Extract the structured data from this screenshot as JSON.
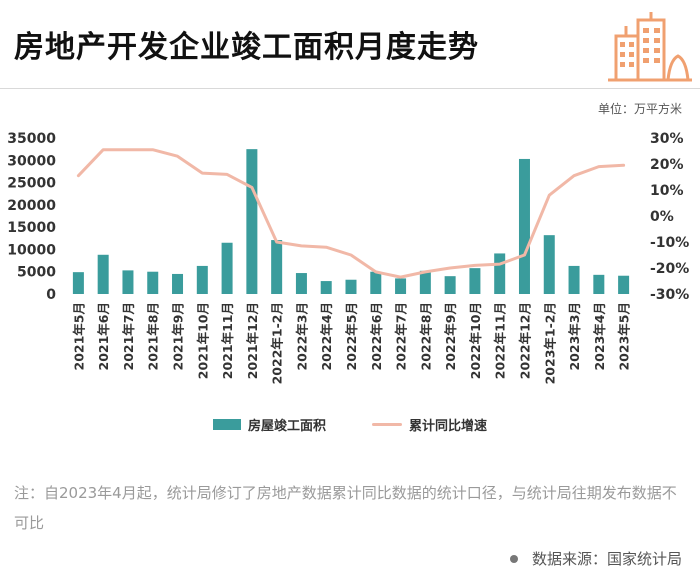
{
  "page": {
    "title": "房地产开发企业竣工面积月度走势",
    "unit_label": "单位：万平方米",
    "note": "注：自2023年4月起，统计局修订了房地产数据累计同比数据的统计口径，与统计局往期发布数据不可比",
    "source": "数据来源：国家统计局"
  },
  "colors": {
    "bar": "#3a9c9c",
    "line": "#f1b8a7",
    "logo": "#f0a070"
  },
  "chart_data": {
    "type": "bar",
    "categories": [
      "2021年5月",
      "2021年6月",
      "2021年7月",
      "2021年8月",
      "2021年9月",
      "2021年10月",
      "2021年11月",
      "2021年12月",
      "2022年1-2月",
      "2022年3月",
      "2022年4月",
      "2022年5月",
      "2022年6月",
      "2022年7月",
      "2022年8月",
      "2022年9月",
      "2022年10月",
      "2022年11月",
      "2022年12月",
      "2023年1-2月",
      "2023年3月",
      "2023年4月",
      "2023年5月"
    ],
    "series": [
      {
        "name": "房屋竣工面积",
        "type": "bar",
        "axis": "left",
        "values": [
          4900,
          8800,
          5300,
          5000,
          4500,
          6300,
          11500,
          32500,
          12100,
          4700,
          2900,
          3200,
          5000,
          3500,
          5200,
          4000,
          5800,
          9100,
          30300,
          13200,
          6300,
          4300,
          4100
        ]
      },
      {
        "name": "累计同比增速",
        "type": "line",
        "axis": "right",
        "values": [
          15.5,
          25.5,
          25.5,
          25.5,
          23,
          16.5,
          16,
          11,
          -10,
          -11.5,
          -12,
          -15,
          -21.5,
          -23.5,
          -21.5,
          -20,
          -19,
          -18.5,
          -15,
          8,
          15.5,
          19,
          19.5
        ]
      }
    ],
    "y_left": {
      "ylim": [
        0,
        35000
      ],
      "ticks": [
        0,
        5000,
        10000,
        15000,
        20000,
        25000,
        30000,
        35000
      ]
    },
    "y_right": {
      "ylim": [
        -30,
        30
      ],
      "ticks": [
        "-30%",
        "-20%",
        "-10%",
        "0%",
        "10%",
        "20%",
        "30%"
      ]
    },
    "legend_position": "bottom",
    "grid": false
  }
}
